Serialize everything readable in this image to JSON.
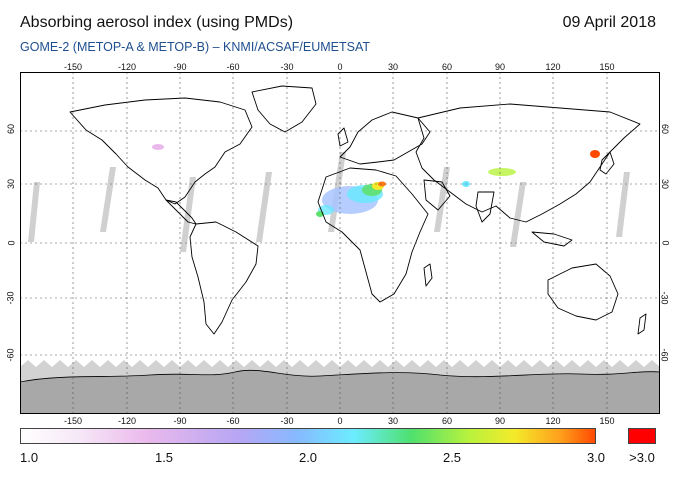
{
  "header": {
    "title": "Absorbing aerosol index (using PMDs)",
    "date": "09 April 2018",
    "subtitle": "GOME-2 (METOP-A & METOP-B)  –  KNMI/ACSAF/EUMETSAT"
  },
  "map": {
    "lon_labels": [
      "-150",
      "-120",
      "-90",
      "-60",
      "-30",
      "0",
      "30",
      "60",
      "90",
      "120",
      "150"
    ],
    "lat_labels": [
      "60",
      "30",
      "0",
      "-30",
      "-60"
    ],
    "colors": {
      "land_outline": "#000000",
      "no_data": "#cccccc",
      "grid": "#555555",
      "polar_mask": "#a9a9a9"
    }
  },
  "colorbar": {
    "labels": [
      "1.0",
      "1.5",
      "2.0",
      "2.5",
      "3.0"
    ],
    "overflow_label": ">3.0",
    "overflow_color": "#ff0000"
  }
}
